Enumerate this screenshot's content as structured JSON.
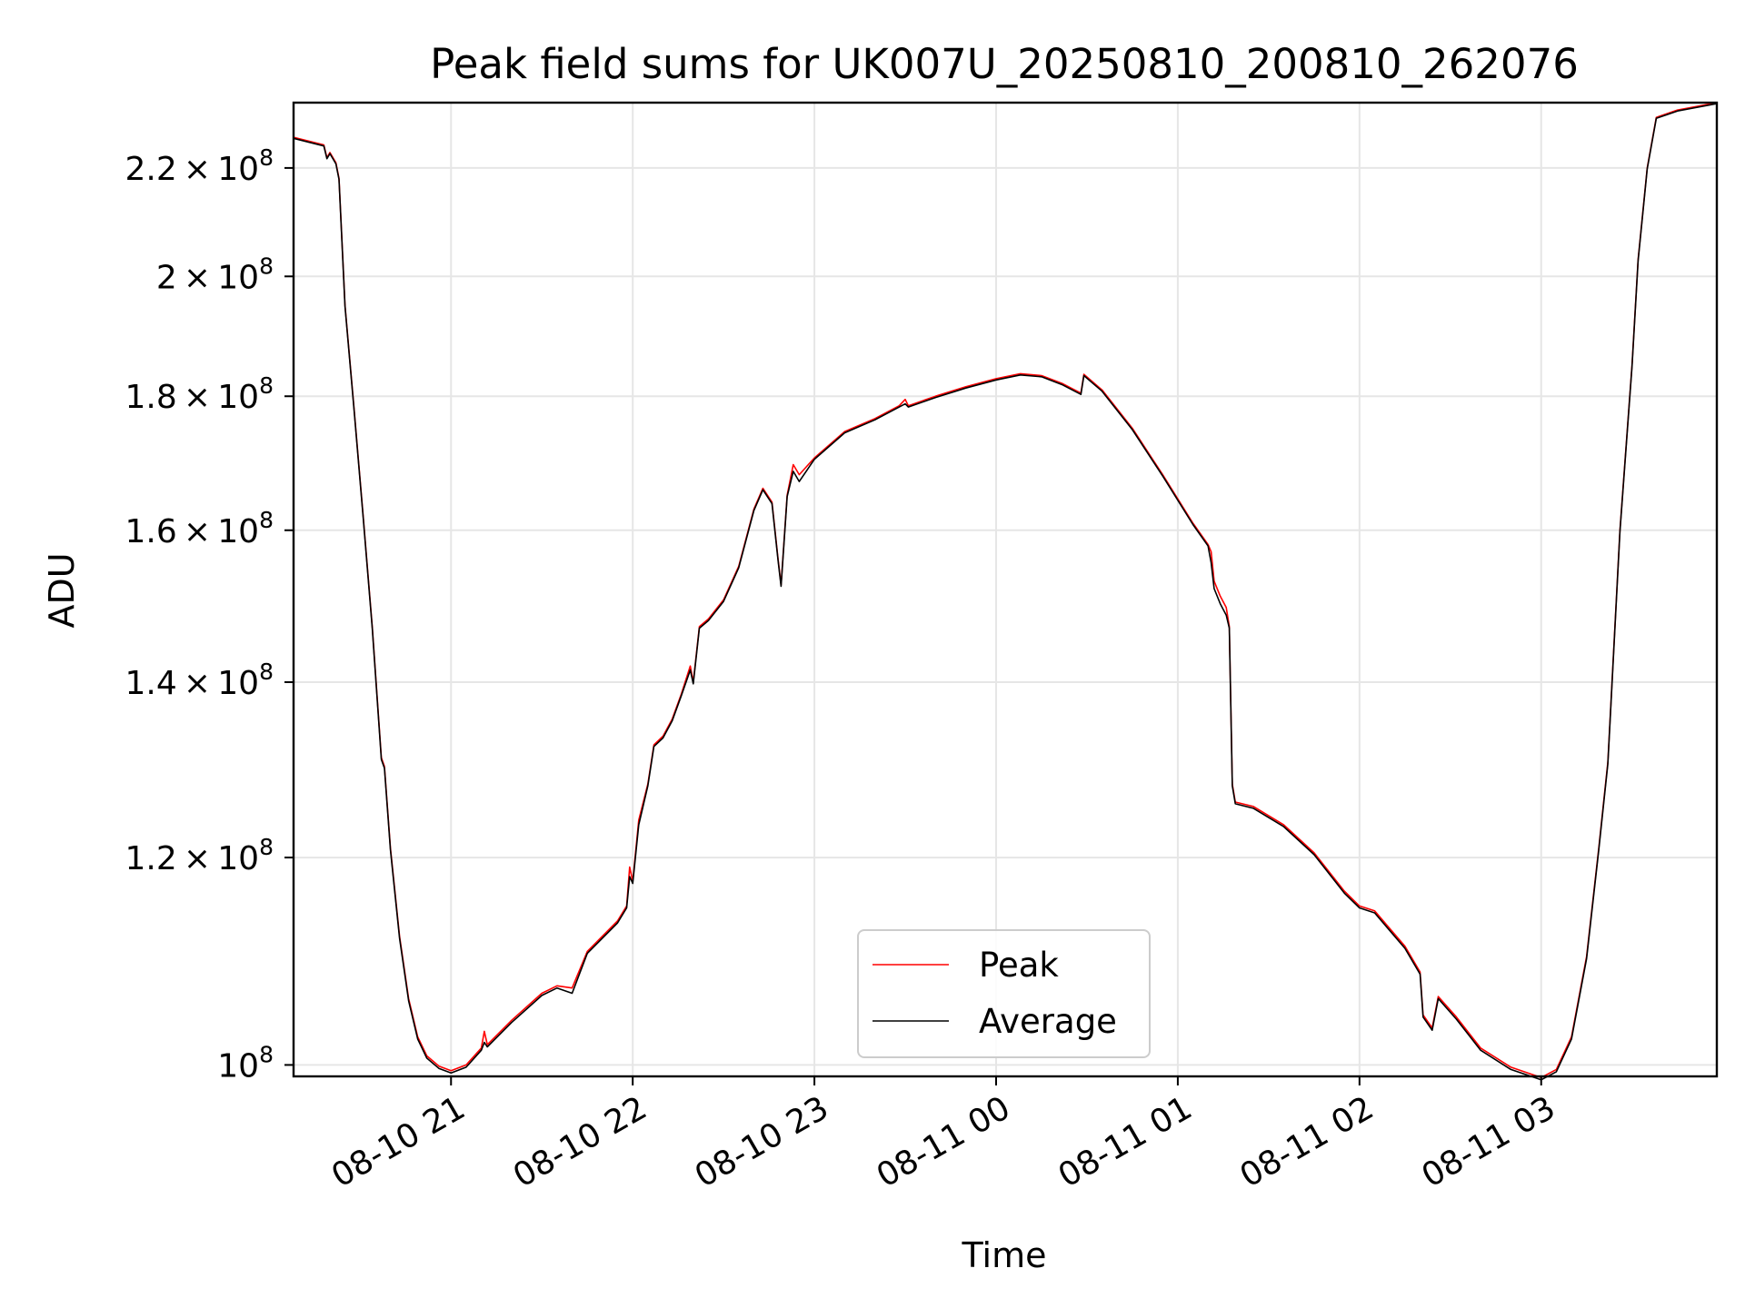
{
  "chart_data": {
    "type": "line",
    "title": "Peak field sums for UK007U_20250810_200810_262076",
    "xlabel": "Time",
    "ylabel": "ADU",
    "yscale": "log",
    "grid": true,
    "legend_position": "bottom-center",
    "x_tick_labels": [
      "08-10 21",
      "08-10 22",
      "08-10 23",
      "08-11 00",
      "08-11 01",
      "08-11 02",
      "08-11 03"
    ],
    "x_ticks": [
      "2025-08-10 21:00",
      "2025-08-10 22:00",
      "2025-08-10 23:00",
      "2025-08-11 00:00",
      "2025-08-11 01:00",
      "2025-08-11 02:00",
      "2025-08-11 03:00"
    ],
    "xlim": [
      "2025-08-10 20:08",
      "2025-08-11 03:58"
    ],
    "y_ticks": [
      {
        "value": 220000000,
        "mantissa": "2.2",
        "exponent": "8"
      },
      {
        "value": 200000000,
        "mantissa": "2",
        "exponent": "8"
      },
      {
        "value": 180000000,
        "mantissa": "1.8",
        "exponent": "8"
      },
      {
        "value": 160000000,
        "mantissa": "1.6",
        "exponent": "8"
      },
      {
        "value": 140000000,
        "mantissa": "1.4",
        "exponent": "8"
      },
      {
        "value": 120000000,
        "mantissa": "1.2",
        "exponent": "8"
      },
      {
        "value": 100000000,
        "mantissa": "",
        "exponent": "8"
      }
    ],
    "ylim": [
      99000000,
      233000000
    ],
    "series": [
      {
        "name": "Peak",
        "color": "#ff0000",
        "points": [
          [
            "2025-08-10 20:08",
            226000000
          ],
          [
            "2025-08-10 20:18",
            224500000
          ],
          [
            "2025-08-10 20:19",
            222000000
          ],
          [
            "2025-08-10 20:20",
            223000000
          ],
          [
            "2025-08-10 20:22",
            221000000
          ],
          [
            "2025-08-10 20:23",
            218000000
          ],
          [
            "2025-08-10 20:25",
            195000000
          ],
          [
            "2025-08-10 20:28",
            178000000
          ],
          [
            "2025-08-10 20:31",
            162000000
          ],
          [
            "2025-08-10 20:34",
            147000000
          ],
          [
            "2025-08-10 20:37",
            131000000
          ],
          [
            "2025-08-10 20:38",
            130000000
          ],
          [
            "2025-08-10 20:40",
            121000000
          ],
          [
            "2025-08-10 20:43",
            112000000
          ],
          [
            "2025-08-10 20:46",
            106000000
          ],
          [
            "2025-08-10 20:49",
            102500000
          ],
          [
            "2025-08-10 20:52",
            100800000
          ],
          [
            "2025-08-10 20:56",
            99900000
          ],
          [
            "2025-08-10 21:00",
            99500000
          ],
          [
            "2025-08-10 21:05",
            100000000
          ],
          [
            "2025-08-10 21:10",
            101500000
          ],
          [
            "2025-08-10 21:11",
            103000000
          ],
          [
            "2025-08-10 21:12",
            101800000
          ],
          [
            "2025-08-10 21:20",
            104000000
          ],
          [
            "2025-08-10 21:30",
            106500000
          ],
          [
            "2025-08-10 21:35",
            107200000
          ],
          [
            "2025-08-10 21:40",
            107000000
          ],
          [
            "2025-08-10 21:45",
            110500000
          ],
          [
            "2025-08-10 21:55",
            113500000
          ],
          [
            "2025-08-10 21:58",
            115000000
          ],
          [
            "2025-08-10 21:59",
            119000000
          ],
          [
            "2025-08-10 22:00",
            117500000
          ],
          [
            "2025-08-10 22:02",
            124000000
          ],
          [
            "2025-08-10 22:05",
            128000000
          ],
          [
            "2025-08-10 22:07",
            132500000
          ],
          [
            "2025-08-10 22:10",
            133500000
          ],
          [
            "2025-08-10 22:13",
            135500000
          ],
          [
            "2025-08-10 22:16",
            138500000
          ],
          [
            "2025-08-10 22:19",
            142000000
          ],
          [
            "2025-08-10 22:20",
            140000000
          ],
          [
            "2025-08-10 22:22",
            147000000
          ],
          [
            "2025-08-10 22:25",
            148000000
          ],
          [
            "2025-08-10 22:30",
            150500000
          ],
          [
            "2025-08-10 22:35",
            155000000
          ],
          [
            "2025-08-10 22:40",
            163000000
          ],
          [
            "2025-08-10 22:43",
            166000000
          ],
          [
            "2025-08-10 22:46",
            164000000
          ],
          [
            "2025-08-10 22:48",
            156000000
          ],
          [
            "2025-08-10 22:49",
            152500000
          ],
          [
            "2025-08-10 22:51",
            165000000
          ],
          [
            "2025-08-10 22:53",
            169500000
          ],
          [
            "2025-08-10 22:55",
            168000000
          ],
          [
            "2025-08-10 23:00",
            170500000
          ],
          [
            "2025-08-10 23:10",
            174500000
          ],
          [
            "2025-08-10 23:20",
            176500000
          ],
          [
            "2025-08-10 23:28",
            178500000
          ],
          [
            "2025-08-10 23:30",
            179500000
          ],
          [
            "2025-08-10 23:31",
            178500000
          ],
          [
            "2025-08-10 23:40",
            180000000
          ],
          [
            "2025-08-10 23:50",
            181500000
          ],
          [
            "2025-08-11 00:00",
            182800000
          ],
          [
            "2025-08-11 00:08",
            183600000
          ],
          [
            "2025-08-11 00:15",
            183300000
          ],
          [
            "2025-08-11 00:22",
            182000000
          ],
          [
            "2025-08-11 00:28",
            180500000
          ],
          [
            "2025-08-11 00:29",
            183500000
          ],
          [
            "2025-08-11 00:35",
            181000000
          ],
          [
            "2025-08-11 00:45",
            175000000
          ],
          [
            "2025-08-11 00:55",
            168000000
          ],
          [
            "2025-08-11 01:05",
            161000000
          ],
          [
            "2025-08-11 01:10",
            158000000
          ],
          [
            "2025-08-11 01:11",
            157000000
          ],
          [
            "2025-08-11 01:12",
            153000000
          ],
          [
            "2025-08-11 01:14",
            151000000
          ],
          [
            "2025-08-11 01:16",
            149500000
          ],
          [
            "2025-08-11 01:17",
            147000000
          ],
          [
            "2025-08-11 01:18",
            128000000
          ],
          [
            "2025-08-11 01:19",
            126000000
          ],
          [
            "2025-08-11 01:25",
            125500000
          ],
          [
            "2025-08-11 01:35",
            123500000
          ],
          [
            "2025-08-11 01:45",
            120500000
          ],
          [
            "2025-08-11 01:55",
            116500000
          ],
          [
            "2025-08-11 02:00",
            115000000
          ],
          [
            "2025-08-11 02:05",
            114500000
          ],
          [
            "2025-08-11 02:15",
            111000000
          ],
          [
            "2025-08-11 02:20",
            108500000
          ],
          [
            "2025-08-11 02:21",
            104500000
          ],
          [
            "2025-08-11 02:24",
            103300000
          ],
          [
            "2025-08-11 02:26",
            106200000
          ],
          [
            "2025-08-11 02:32",
            104300000
          ],
          [
            "2025-08-11 02:40",
            101500000
          ],
          [
            "2025-08-11 02:50",
            99800000
          ],
          [
            "2025-08-11 03:00",
            98900000
          ],
          [
            "2025-08-11 03:05",
            99600000
          ],
          [
            "2025-08-11 03:10",
            102500000
          ],
          [
            "2025-08-11 03:15",
            110000000
          ],
          [
            "2025-08-11 03:19",
            121000000
          ],
          [
            "2025-08-11 03:22",
            130500000
          ],
          [
            "2025-08-11 03:26",
            160000000
          ],
          [
            "2025-08-11 03:30",
            185000000
          ],
          [
            "2025-08-11 03:32",
            203000000
          ],
          [
            "2025-08-11 03:35",
            220000000
          ],
          [
            "2025-08-11 03:38",
            230000000
          ],
          [
            "2025-08-11 03:45",
            231500000
          ],
          [
            "2025-08-11 03:58",
            233000000
          ]
        ]
      },
      {
        "name": "Average",
        "color": "#000000",
        "points": [
          [
            "2025-08-10 20:08",
            225800000
          ],
          [
            "2025-08-10 20:18",
            224300000
          ],
          [
            "2025-08-10 20:19",
            221800000
          ],
          [
            "2025-08-10 20:20",
            222800000
          ],
          [
            "2025-08-10 20:22",
            220800000
          ],
          [
            "2025-08-10 20:23",
            217800000
          ],
          [
            "2025-08-10 20:25",
            194800000
          ],
          [
            "2025-08-10 20:28",
            177800000
          ],
          [
            "2025-08-10 20:31",
            161800000
          ],
          [
            "2025-08-10 20:34",
            146800000
          ],
          [
            "2025-08-10 20:37",
            130800000
          ],
          [
            "2025-08-10 20:38",
            129800000
          ],
          [
            "2025-08-10 20:40",
            120800000
          ],
          [
            "2025-08-10 20:43",
            111800000
          ],
          [
            "2025-08-10 20:46",
            105800000
          ],
          [
            "2025-08-10 20:49",
            102300000
          ],
          [
            "2025-08-10 20:52",
            100600000
          ],
          [
            "2025-08-10 20:56",
            99700000
          ],
          [
            "2025-08-10 21:00",
            99300000
          ],
          [
            "2025-08-10 21:05",
            99800000
          ],
          [
            "2025-08-10 21:10",
            101300000
          ],
          [
            "2025-08-10 21:11",
            102000000
          ],
          [
            "2025-08-10 21:12",
            101600000
          ],
          [
            "2025-08-10 21:20",
            103800000
          ],
          [
            "2025-08-10 21:30",
            106300000
          ],
          [
            "2025-08-10 21:35",
            107000000
          ],
          [
            "2025-08-10 21:40",
            106500000
          ],
          [
            "2025-08-10 21:45",
            110300000
          ],
          [
            "2025-08-10 21:55",
            113300000
          ],
          [
            "2025-08-10 21:58",
            114800000
          ],
          [
            "2025-08-10 21:59",
            118000000
          ],
          [
            "2025-08-10 22:00",
            117300000
          ],
          [
            "2025-08-10 22:02",
            123500000
          ],
          [
            "2025-08-10 22:05",
            127800000
          ],
          [
            "2025-08-10 22:07",
            132300000
          ],
          [
            "2025-08-10 22:10",
            133300000
          ],
          [
            "2025-08-10 22:13",
            135300000
          ],
          [
            "2025-08-10 22:16",
            138300000
          ],
          [
            "2025-08-10 22:19",
            141500000
          ],
          [
            "2025-08-10 22:20",
            139800000
          ],
          [
            "2025-08-10 22:22",
            146800000
          ],
          [
            "2025-08-10 22:25",
            147800000
          ],
          [
            "2025-08-10 22:30",
            150300000
          ],
          [
            "2025-08-10 22:35",
            154800000
          ],
          [
            "2025-08-10 22:40",
            162800000
          ],
          [
            "2025-08-10 22:43",
            165800000
          ],
          [
            "2025-08-10 22:46",
            163800000
          ],
          [
            "2025-08-10 22:48",
            155800000
          ],
          [
            "2025-08-10 22:49",
            152300000
          ],
          [
            "2025-08-10 22:51",
            164800000
          ],
          [
            "2025-08-10 22:53",
            168500000
          ],
          [
            "2025-08-10 22:55",
            167000000
          ],
          [
            "2025-08-10 23:00",
            170300000
          ],
          [
            "2025-08-10 23:10",
            174300000
          ],
          [
            "2025-08-10 23:20",
            176300000
          ],
          [
            "2025-08-10 23:28",
            178300000
          ],
          [
            "2025-08-10 23:30",
            178800000
          ],
          [
            "2025-08-10 23:31",
            178300000
          ],
          [
            "2025-08-10 23:40",
            179800000
          ],
          [
            "2025-08-10 23:50",
            181300000
          ],
          [
            "2025-08-11 00:00",
            182600000
          ],
          [
            "2025-08-11 00:08",
            183400000
          ],
          [
            "2025-08-11 00:15",
            183100000
          ],
          [
            "2025-08-11 00:22",
            181800000
          ],
          [
            "2025-08-11 00:28",
            180300000
          ],
          [
            "2025-08-11 00:29",
            183300000
          ],
          [
            "2025-08-11 00:35",
            180800000
          ],
          [
            "2025-08-11 00:45",
            174800000
          ],
          [
            "2025-08-11 00:55",
            167800000
          ],
          [
            "2025-08-11 01:05",
            160800000
          ],
          [
            "2025-08-11 01:10",
            157800000
          ],
          [
            "2025-08-11 01:11",
            155500000
          ],
          [
            "2025-08-11 01:12",
            152000000
          ],
          [
            "2025-08-11 01:14",
            150000000
          ],
          [
            "2025-08-11 01:16",
            148500000
          ],
          [
            "2025-08-11 01:17",
            146800000
          ],
          [
            "2025-08-11 01:18",
            127800000
          ],
          [
            "2025-08-11 01:19",
            125800000
          ],
          [
            "2025-08-11 01:25",
            125300000
          ],
          [
            "2025-08-11 01:35",
            123300000
          ],
          [
            "2025-08-11 01:45",
            120300000
          ],
          [
            "2025-08-11 01:55",
            116300000
          ],
          [
            "2025-08-11 02:00",
            114800000
          ],
          [
            "2025-08-11 02:05",
            114300000
          ],
          [
            "2025-08-11 02:15",
            110800000
          ],
          [
            "2025-08-11 02:20",
            108300000
          ],
          [
            "2025-08-11 02:21",
            104300000
          ],
          [
            "2025-08-11 02:24",
            103100000
          ],
          [
            "2025-08-11 02:26",
            106000000
          ],
          [
            "2025-08-11 02:32",
            104100000
          ],
          [
            "2025-08-11 02:40",
            101300000
          ],
          [
            "2025-08-11 02:50",
            99600000
          ],
          [
            "2025-08-11 03:00",
            98700000
          ],
          [
            "2025-08-11 03:05",
            99400000
          ],
          [
            "2025-08-11 03:10",
            102300000
          ],
          [
            "2025-08-11 03:15",
            109800000
          ],
          [
            "2025-08-11 03:19",
            120800000
          ],
          [
            "2025-08-11 03:22",
            130300000
          ],
          [
            "2025-08-11 03:26",
            159800000
          ],
          [
            "2025-08-11 03:30",
            184800000
          ],
          [
            "2025-08-11 03:32",
            202800000
          ],
          [
            "2025-08-11 03:35",
            219800000
          ],
          [
            "2025-08-11 03:38",
            229800000
          ],
          [
            "2025-08-11 03:45",
            231300000
          ],
          [
            "2025-08-11 03:58",
            232800000
          ]
        ]
      }
    ]
  }
}
